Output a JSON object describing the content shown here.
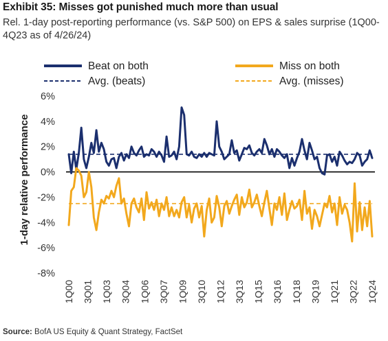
{
  "title": "Exhibit 35: Misses got punished much more than usual",
  "subtitle": "Rel. 1-day post-reporting performance (vs. S&P 500) on EPS & sales surprise (1Q00-4Q23 as of 4/26/24)",
  "source": {
    "label": "Source:",
    "text": "BofA US Equity & Quant Strategy, FactSet"
  },
  "colors": {
    "beat": "#1b2f6e",
    "miss": "#f2a81d",
    "zero_line": "#000000",
    "axis_text": "#333333"
  },
  "chart_data": {
    "type": "line",
    "ylabel": "1-day relative performance",
    "xlabel": "",
    "ylim": [
      -8,
      6
    ],
    "y_ticks": [
      "6%",
      "4%",
      "2%",
      "0%",
      "-2%",
      "-4%",
      "-6%",
      "-8%"
    ],
    "x_tick_labels": [
      "1Q00",
      "3Q01",
      "1Q03",
      "3Q04",
      "1Q06",
      "3Q07",
      "1Q09",
      "3Q10",
      "1Q12",
      "3Q13",
      "1Q15",
      "3Q16",
      "1Q18",
      "3Q19",
      "1Q21",
      "3Q22",
      "1Q24"
    ],
    "legend": [
      {
        "key": "beat",
        "label": "Beat on both",
        "style": "solid"
      },
      {
        "key": "miss",
        "label": "Miss on both",
        "style": "solid"
      },
      {
        "key": "beat_avg",
        "label": "Avg. (beats)",
        "style": "dashed"
      },
      {
        "key": "miss_avg",
        "label": "Avg. (misses)",
        "style": "dashed"
      }
    ],
    "legend_position": "top",
    "averages": {
      "beats": 1.4,
      "misses": -2.5
    },
    "series": [
      {
        "name": "Beat on both",
        "values": [
          1.4,
          -0.1,
          1.6,
          0.2,
          1.5,
          3.5,
          1.0,
          0.3,
          1.2,
          2.3,
          1.5,
          3.3,
          1.6,
          2.3,
          1.8,
          0.8,
          0.5,
          1.0,
          1.1,
          0.3,
          1.2,
          1.5,
          0.9,
          1.4,
          1.1,
          2.0,
          1.5,
          1.3,
          1.7,
          2.0,
          1.2,
          1.4,
          1.3,
          1.8,
          1.6,
          1.2,
          1.6,
          1.3,
          0.8,
          2.8,
          1.2,
          1.3,
          1.6,
          1.0,
          2.0,
          5.1,
          4.5,
          1.4,
          1.3,
          1.6,
          1.2,
          1.1,
          1.4,
          1.2,
          1.5,
          1.2,
          1.5,
          1.4,
          1.3,
          4.0,
          2.0,
          1.6,
          1.0,
          1.2,
          1.4,
          2.5,
          1.5,
          1.7,
          0.9,
          1.4,
          1.9,
          1.8,
          2.1,
          1.5,
          1.3,
          1.6,
          1.8,
          1.5,
          2.6,
          2.1,
          1.4,
          1.8,
          1.2,
          1.8,
          1.6,
          1.3,
          1.1,
          1.4,
          0.3,
          1.1,
          0.5,
          1.1,
          1.6,
          2.6,
          1.7,
          1.0,
          2.3,
          1.7,
          1.0,
          1.2,
          0.3,
          -0.1,
          -0.2,
          1.3,
          1.4,
          0.8,
          1.2,
          0.5,
          1.6,
          1.3,
          0.9,
          0.6,
          0.8,
          0.7,
          1.0,
          1.5,
          1.3,
          0.5,
          0.8,
          1.0,
          1.7,
          1.1
        ]
      },
      {
        "name": "Miss on both",
        "values": [
          -4.2,
          -1.5,
          -1.2,
          0.3,
          0.1,
          -0.3,
          -2.0,
          -1.6,
          0.0,
          -1.2,
          -3.6,
          -4.6,
          -3.2,
          -2.2,
          -2.5,
          -1.9,
          -2.1,
          -1.5,
          -2.0,
          -1.1,
          -0.5,
          -2.5,
          -2.1,
          -3.3,
          -4.3,
          -2.5,
          -2.1,
          -2.8,
          -3.2,
          -2.1,
          -3.8,
          -1.6,
          -2.9,
          -2.4,
          -3.0,
          -2.2,
          -3.5,
          -2.5,
          -3.0,
          -2.0,
          -3.5,
          -2.8,
          -3.5,
          -3.0,
          -3.6,
          -2.4,
          -2.0,
          -3.6,
          -2.6,
          -4.0,
          -2.9,
          -2.5,
          -3.6,
          -2.7,
          -5.1,
          -3.0,
          -2.1,
          -4.0,
          -3.6,
          -1.9,
          -2.8,
          -4.3,
          -2.7,
          -2.3,
          -3.3,
          -2.7,
          -2.2,
          -1.8,
          -3.4,
          -2.0,
          -2.8,
          -2.4,
          -1.4,
          -2.8,
          -2.4,
          -1.8,
          -2.7,
          -3.5,
          -2.4,
          -1.5,
          -2.9,
          -4.2,
          -2.5,
          -3.0,
          -2.0,
          -3.4,
          -1.7,
          -3.8,
          -3.0,
          -2.3,
          -2.9,
          -2.7,
          -2.2,
          -3.8,
          -1.5,
          -3.3,
          -2.8,
          -4.5,
          -3.0,
          -3.5,
          -4.3,
          -3.4,
          -2.5,
          -2.8,
          -1.9,
          -3.2,
          -2.5,
          -4.2,
          -2.0,
          -3.3,
          -2.6,
          -3.0,
          -4.0,
          -5.5,
          -0.9,
          -4.7,
          -2.4,
          -4.6,
          -2.8,
          -4.3,
          -2.3,
          -5.1
        ]
      }
    ]
  }
}
